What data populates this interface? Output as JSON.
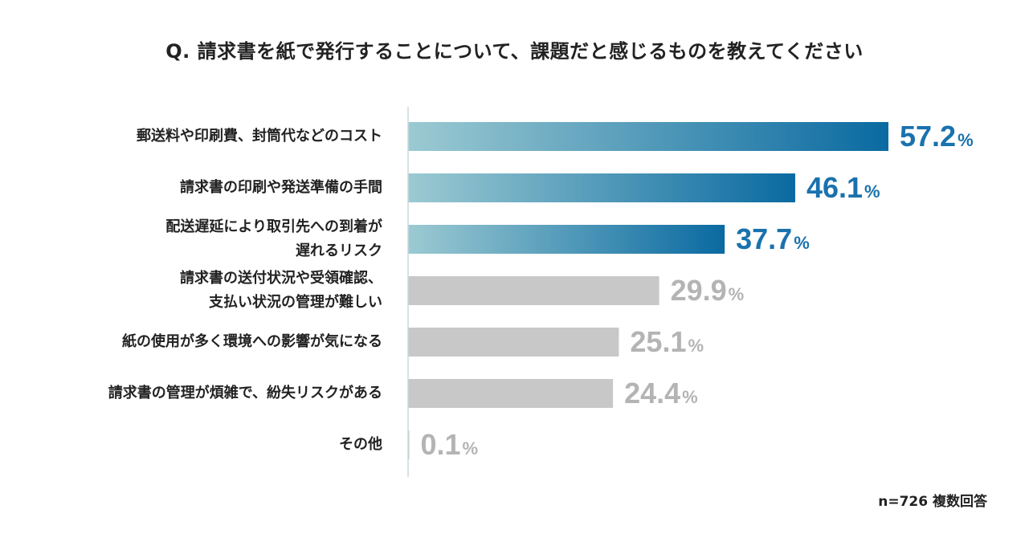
{
  "chart_data": {
    "type": "bar",
    "orientation": "horizontal",
    "title": "Q. 請求書を紙で発行することについて、課題だと感じるものを教えてください",
    "note": "n=726 複数回答",
    "unit": "%",
    "xlim": [
      0,
      57.2
    ],
    "categories": [
      [
        "郵送料や印刷費、封筒代などのコスト"
      ],
      [
        "請求書の印刷や発送準備の手間"
      ],
      [
        "配送遅延により取引先への到着が",
        "遅れるリスク"
      ],
      [
        "請求書の送付状況や受領確認、",
        "支払い状況の管理が難しい"
      ],
      [
        "紙の使用が多く環境への影響が気になる"
      ],
      [
        "請求書の管理が煩雑で、紛失リスクがある"
      ],
      [
        "その他"
      ]
    ],
    "values": [
      57.2,
      46.1,
      37.7,
      29.9,
      25.1,
      24.4,
      0.1
    ],
    "value_labels": [
      "57.2",
      "46.1",
      "37.7",
      "29.9",
      "25.1",
      "24.4",
      "0.1"
    ],
    "highlight_count": 3,
    "colors": {
      "highlight_start": "#9ccad2",
      "highlight_end": "#0a6aa1",
      "highlight_text": "#1a72ad",
      "muted_bar": "#c8c8c8",
      "muted_text": "#b4b4b4",
      "axis": "#c9d7dd",
      "label_text": "#222222"
    }
  }
}
